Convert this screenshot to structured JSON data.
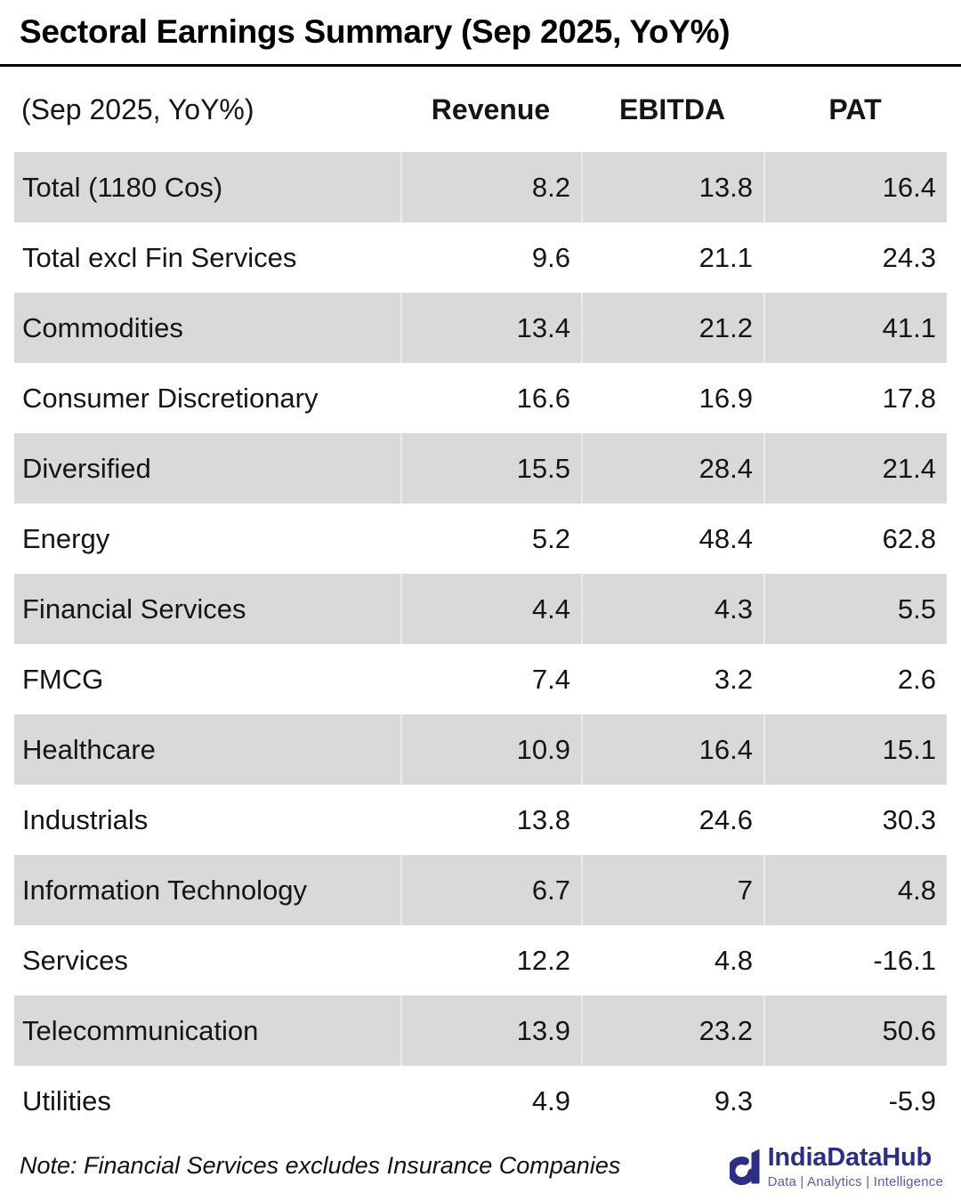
{
  "title": "Sectoral Earnings Summary (Sep 2025, YoY%)",
  "note": "Note: Financial Services excludes Insurance Companies",
  "logo": {
    "name": "IndiaDataHub",
    "tagline": "Data | Analytics | Intelligence",
    "navy": "#2b2e83",
    "tagline_color": "#5c5ca8"
  },
  "colors": {
    "row_shade": "#d9d9d9",
    "rule": "#000000",
    "text": "#151515"
  },
  "chart_data": {
    "type": "table",
    "title": "Sectoral Earnings Summary (Sep 2025, YoY%)",
    "corner_label": "(Sep 2025, YoY%)",
    "columns": [
      "Revenue",
      "EBITDA",
      "PAT"
    ],
    "rows": [
      {
        "label": "Total (1180 Cos)",
        "values": [
          "8.2",
          "13.8",
          "16.4"
        ]
      },
      {
        "label": "Total excl Fin Services",
        "values": [
          "9.6",
          "21.1",
          "24.3"
        ]
      },
      {
        "label": "Commodities",
        "values": [
          "13.4",
          "21.2",
          "41.1"
        ]
      },
      {
        "label": "Consumer Discretionary",
        "values": [
          "16.6",
          "16.9",
          "17.8"
        ]
      },
      {
        "label": "Diversified",
        "values": [
          "15.5",
          "28.4",
          "21.4"
        ]
      },
      {
        "label": "Energy",
        "values": [
          "5.2",
          "48.4",
          "62.8"
        ]
      },
      {
        "label": "Financial Services",
        "values": [
          "4.4",
          "4.3",
          "5.5"
        ]
      },
      {
        "label": "FMCG",
        "values": [
          "7.4",
          "3.2",
          "2.6"
        ]
      },
      {
        "label": "Healthcare",
        "values": [
          "10.9",
          "16.4",
          "15.1"
        ]
      },
      {
        "label": "Industrials",
        "values": [
          "13.8",
          "24.6",
          "30.3"
        ]
      },
      {
        "label": "Information Technology",
        "values": [
          "6.7",
          "7",
          "4.8"
        ]
      },
      {
        "label": "Services",
        "values": [
          "12.2",
          "4.8",
          "-16.1"
        ]
      },
      {
        "label": "Telecommunication",
        "values": [
          "13.9",
          "23.2",
          "50.6"
        ]
      },
      {
        "label": "Utilities",
        "values": [
          "4.9",
          "9.3",
          "-5.9"
        ]
      }
    ],
    "layout": {
      "striped": true,
      "first_row_shaded": true,
      "values_align": "right"
    }
  }
}
